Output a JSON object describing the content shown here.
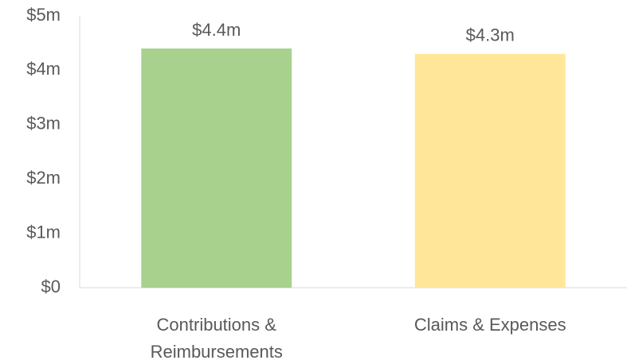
{
  "chart_data": {
    "type": "bar",
    "categories": [
      "Contributions & Reimbursements",
      "Claims & Expenses"
    ],
    "values": [
      4.4,
      4.3
    ],
    "value_labels": [
      "$4.4m",
      "$4.3m"
    ],
    "colors": [
      "#a9d18e",
      "#ffe699"
    ],
    "ylim": [
      0,
      5
    ],
    "yticks": [
      {
        "value": 0,
        "label": "$0"
      },
      {
        "value": 1,
        "label": "$1m"
      },
      {
        "value": 2,
        "label": "$2m"
      },
      {
        "value": 3,
        "label": "$3m"
      },
      {
        "value": 4,
        "label": "$4m"
      },
      {
        "value": 5,
        "label": "$5m"
      }
    ],
    "grid": false
  }
}
